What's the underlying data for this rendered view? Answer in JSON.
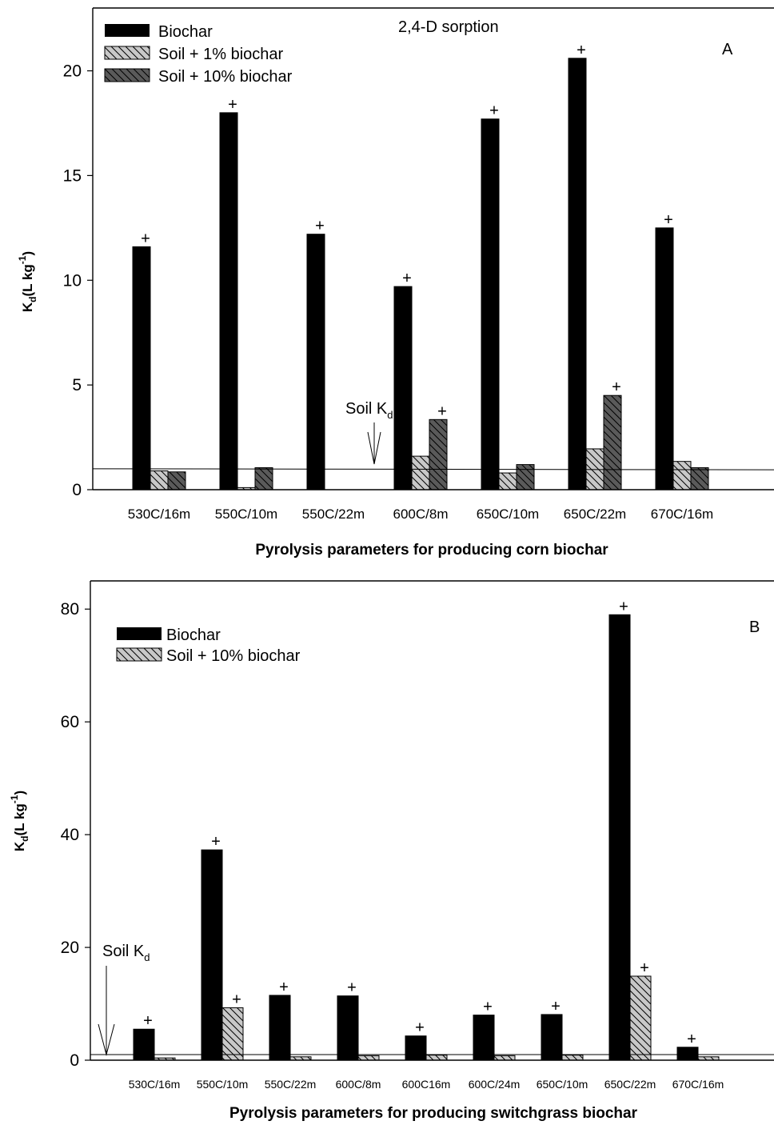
{
  "chart_data": [
    {
      "type": "bar",
      "title": "2,4-D sorption",
      "panel_label": "A",
      "xlabel": "Pyrolysis parameters for producing corn biochar",
      "ylabel_main": "K",
      "ylabel_sub": "d",
      "ylabel_unit": "(L kg",
      "ylabel_sup": "-1",
      "ylabel_close": ")",
      "ylim": [
        0,
        23
      ],
      "yticks": [
        0,
        5,
        10,
        15,
        20
      ],
      "categories": [
        "530C/16m",
        "550C/10m",
        "550C/22m",
        "600C/8m",
        "650C/10m",
        "650C/22m",
        "670C/16m"
      ],
      "series": [
        {
          "name": "Biochar",
          "values": [
            11.6,
            18.0,
            12.2,
            9.7,
            17.7,
            20.6,
            12.5
          ],
          "plus": [
            true,
            true,
            true,
            true,
            true,
            true,
            true
          ],
          "color": "#000000",
          "pattern": "solid"
        },
        {
          "name": "Soil + 1% biochar",
          "values": [
            0.9,
            0.1,
            0.0,
            1.6,
            0.8,
            1.95,
            1.35
          ],
          "plus": [
            false,
            false,
            false,
            false,
            false,
            false,
            false
          ],
          "color": "#c0c0c0",
          "pattern": "hatch-light"
        },
        {
          "name": "Soil + 10% biochar",
          "values": [
            0.85,
            1.05,
            0.0,
            3.35,
            1.2,
            4.5,
            1.05
          ],
          "plus": [
            false,
            false,
            false,
            true,
            false,
            true,
            false
          ],
          "color": "#555555",
          "pattern": "hatch-dark"
        }
      ],
      "reference_line": {
        "label_main": "Soil K",
        "label_sub": "d",
        "y_start": 1.0,
        "y_end": 0.95
      },
      "plus_symbol": "+",
      "legend_position": "top-left",
      "grid": false
    },
    {
      "type": "bar",
      "title": "",
      "panel_label": "B",
      "xlabel": "Pyrolysis parameters for producing switchgrass biochar",
      "ylabel_main": "K",
      "ylabel_sub": "d",
      "ylabel_unit": "(L kg",
      "ylabel_sup": "-1",
      "ylabel_close": ")",
      "ylim": [
        0,
        85
      ],
      "yticks": [
        0,
        20,
        40,
        60,
        80
      ],
      "categories": [
        "530C/16m",
        "550C/10m",
        "550C/22m",
        "600C/8m",
        "600C16m",
        "600C/24m",
        "650C/10m",
        "650C/22m",
        "670C/16m"
      ],
      "series": [
        {
          "name": "Biochar",
          "values": [
            5.5,
            37.3,
            11.5,
            11.4,
            4.3,
            8.0,
            8.1,
            79.0,
            2.3
          ],
          "plus": [
            true,
            true,
            true,
            true,
            true,
            true,
            true,
            true,
            true
          ],
          "color": "#000000",
          "pattern": "solid"
        },
        {
          "name": "Soil + 10% biochar",
          "values": [
            0.4,
            9.3,
            0.6,
            0.8,
            0.9,
            0.8,
            0.9,
            14.9,
            0.6
          ],
          "plus": [
            false,
            true,
            false,
            false,
            false,
            false,
            false,
            true,
            false
          ],
          "color": "#c0c0c0",
          "pattern": "hatch-light"
        }
      ],
      "reference_line": {
        "label_main": "Soil K",
        "label_sub": "d",
        "y_start": 1.0,
        "y_end": 1.0
      },
      "plus_symbol": "+",
      "legend_position": "top-left",
      "grid": false
    }
  ]
}
